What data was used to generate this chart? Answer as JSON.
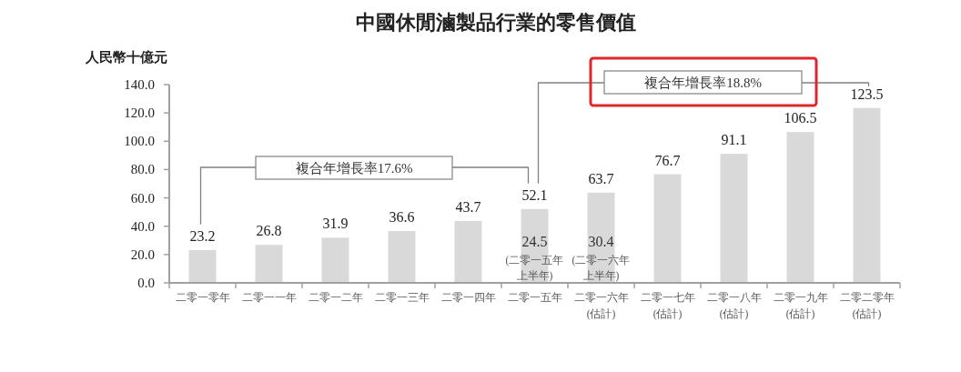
{
  "chart_data": {
    "type": "bar",
    "title": "中國休閒滷製品行業的零售價值",
    "ylabel": "人民幣十億元",
    "categories": [
      "二零一零年",
      "二零一一年",
      "二零一二年",
      "二零一三年",
      "二零一四年",
      "二零一五年",
      "二零一六年\n(估計)",
      "二零一七年\n(估計)",
      "二零一八年\n(估計)",
      "二零一九年\n(估計)",
      "二零二零年\n(估計)"
    ],
    "values": [
      23.2,
      26.8,
      31.9,
      36.6,
      43.7,
      52.1,
      63.7,
      76.7,
      91.1,
      106.5,
      123.5
    ],
    "color": "#d9d9d9",
    "data_labels": true,
    "ylim": [
      0,
      140
    ],
    "yticks": [
      {
        "value": 0,
        "label": "0.0"
      },
      {
        "value": 20,
        "label": "20.0"
      },
      {
        "value": 40,
        "label": "40.0"
      },
      {
        "value": 60,
        "label": "60.0"
      },
      {
        "value": 80,
        "label": "80.0"
      },
      {
        "value": 100,
        "label": "100.0"
      },
      {
        "value": 120,
        "label": "120.0"
      },
      {
        "value": 140,
        "label": "140.0"
      }
    ],
    "annotations": [
      "複合年增長率17.6%",
      "複合年增長率18.8%",
      "24.5",
      "(二零一五年上半年)",
      "30.4",
      "(二零一六年上半年)"
    ]
  }
}
